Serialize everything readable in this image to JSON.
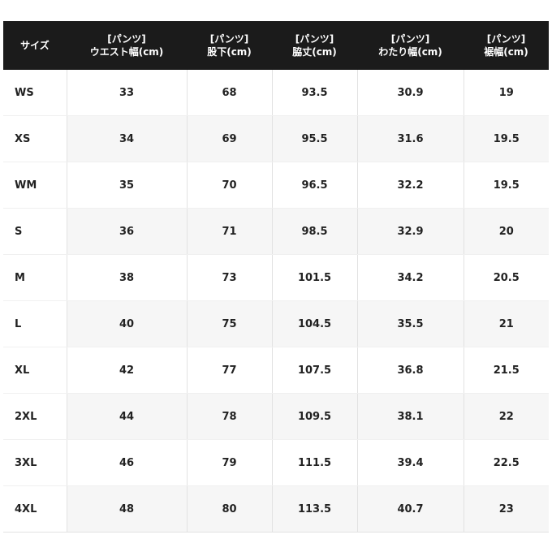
{
  "table": {
    "header": [
      [
        "サイズ"
      ],
      [
        "[パンツ]",
        "ウエスト幅(cm)"
      ],
      [
        "[パンツ]",
        "股下(cm)"
      ],
      [
        "[パンツ]",
        "脇丈(cm)"
      ],
      [
        "[パンツ]",
        "わたり幅(cm)"
      ],
      [
        "[パンツ]",
        "裾幅(cm)"
      ]
    ],
    "rows": [
      [
        "WS",
        33,
        68,
        93.5,
        30.9,
        19
      ],
      [
        "XS",
        34,
        69,
        95.5,
        31.6,
        19.5
      ],
      [
        "WM",
        35,
        70,
        96.5,
        32.2,
        19.5
      ],
      [
        "S",
        36,
        71,
        98.5,
        32.9,
        20
      ],
      [
        "M",
        38,
        73,
        101.5,
        34.2,
        20.5
      ],
      [
        "L",
        40,
        75,
        104.5,
        35.5,
        21
      ],
      [
        "XL",
        42,
        77,
        107.5,
        36.8,
        21.5
      ],
      [
        "2XL",
        44,
        78,
        109.5,
        38.1,
        22
      ],
      [
        "3XL",
        46,
        79,
        111.5,
        39.4,
        22.5
      ],
      [
        "4XL",
        48,
        80,
        113.5,
        40.7,
        23
      ]
    ]
  }
}
